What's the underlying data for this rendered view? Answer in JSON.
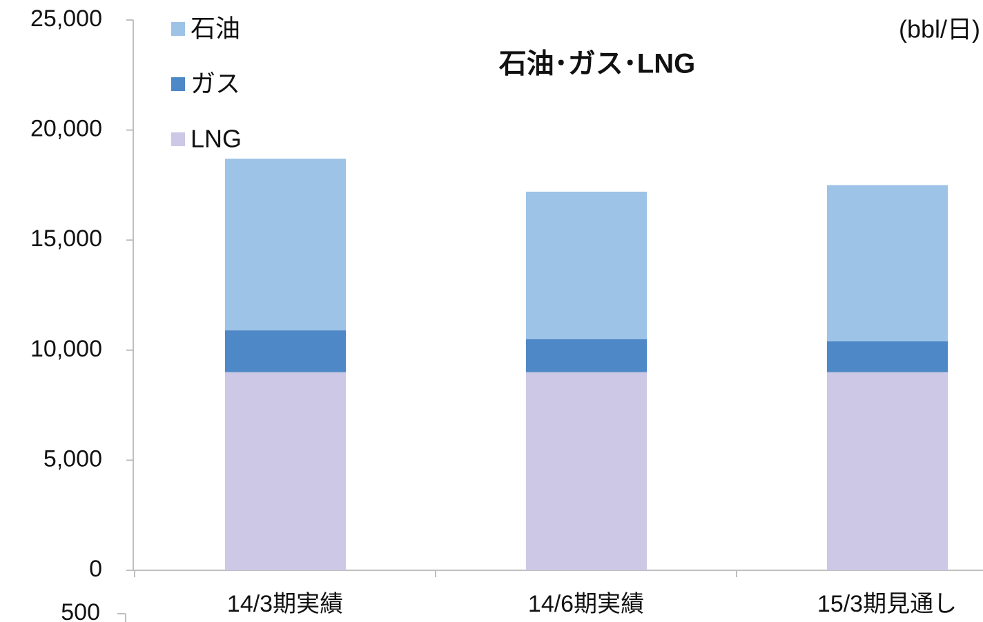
{
  "chart_data": [
    {
      "type": "stacked_bar",
      "title": "石油･ガス･LNG",
      "unit": "(bbl/日)",
      "categories": [
        "14/3期実績",
        "14/6期実績",
        "15/3期見通し"
      ],
      "series": [
        {
          "name": "LNG",
          "color": "#ccc8e5",
          "values": [
            9000,
            9000,
            9000
          ]
        },
        {
          "name": "ガス",
          "color": "#4e88c7",
          "values": [
            1900,
            1500,
            1400
          ]
        },
        {
          "name": "石油",
          "color": "#9dc3e6",
          "values": [
            7800,
            6700,
            7100
          ]
        }
      ],
      "ylim": [
        0,
        25000
      ],
      "yticks": [
        0,
        {
          "value": 5000,
          "label": "5,000"
        },
        {
          "value": 10000,
          "label": "10,000"
        },
        {
          "value": 15000,
          "label": "15,000"
        },
        {
          "value": 20000,
          "label": "20,000"
        },
        {
          "value": 25000,
          "label": "25,000"
        }
      ],
      "legend": "top-left"
    },
    {
      "type": "bar",
      "yticks": [
        500
      ]
    }
  ]
}
